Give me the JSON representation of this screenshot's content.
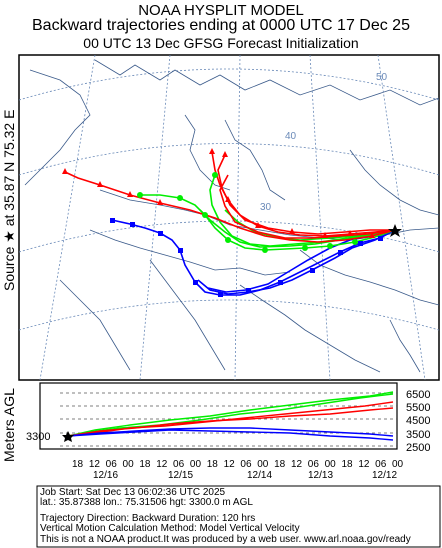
{
  "header": {
    "line1": "NOAA HYSPLIT MODEL",
    "line2": "Backward trajectories ending at 0000 UTC 17 Dec 25",
    "line3": "00 UTC 13 Dec    GFSG  Forecast Initialization"
  },
  "side": {
    "source_text": "Source ★ at   35.87 N   75.32 E",
    "vertical_axis_text": "Meters AGL"
  },
  "map": {
    "lat_labels": [
      "50",
      "40",
      "30"
    ],
    "source_marker": "star"
  },
  "vertical_panel": {
    "start_height": "3300",
    "tick_labels": [
      "6500",
      "5500",
      "4500",
      "3500",
      "2500"
    ],
    "time_ticks": [
      "18",
      "12",
      "06",
      "00",
      "18",
      "12",
      "06",
      "00",
      "18",
      "12",
      "06",
      "00",
      "18",
      "12",
      "06",
      "00",
      "18",
      "12",
      "06",
      "00"
    ],
    "date_labels": [
      "12/16",
      "12/15",
      "12/14",
      "12/13",
      "12/12"
    ]
  },
  "footer": {
    "job_start": "Job Start: Sat Dec 13 06:02:36 UTC 2025",
    "coords": "lat.: 35.87388   lon.: 75.31506   hgt: 3300.0 m AGL",
    "direction": "Trajectory Direction: Backward       Duration: 120 hrs",
    "method": "Vertical Motion Calculation Method: Model Vertical Velocity",
    "disclaimer": "This is not a NOAA product.It was produced by a web user. www.arl.noaa.gov/ready"
  },
  "colors": {
    "trajectory_red": "#ff0000",
    "trajectory_green": "#00ee00",
    "trajectory_blue": "#0000ff",
    "map_lines": "#3a5a8a",
    "grid_lines": "#6a8ab8"
  }
}
